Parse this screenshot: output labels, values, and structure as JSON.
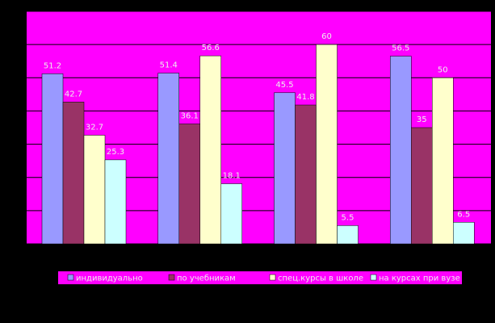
{
  "chart_data": {
    "type": "bar",
    "series": [
      {
        "name": "индивидуально",
        "color": "#9999ff",
        "values": [
          51.2,
          51.4,
          45.5,
          56.5
        ]
      },
      {
        "name": "по учебникам",
        "color": "#993366",
        "values": [
          42.7,
          36.1,
          41.8,
          35
        ]
      },
      {
        "name": "спец.курсы в школе",
        "color": "#ffffcc",
        "values": [
          32.7,
          56.6,
          60,
          50
        ]
      },
      {
        "name": "на курсах при вузе",
        "color": "#ccffff",
        "values": [
          25.3,
          18.1,
          5.5,
          6.5
        ]
      }
    ],
    "ylim": [
      0,
      70
    ],
    "yticks": [
      0,
      10,
      20,
      30,
      40,
      50,
      60,
      70
    ],
    "grid": true,
    "plot_color": "#ff00ff",
    "legend": "bottom"
  }
}
